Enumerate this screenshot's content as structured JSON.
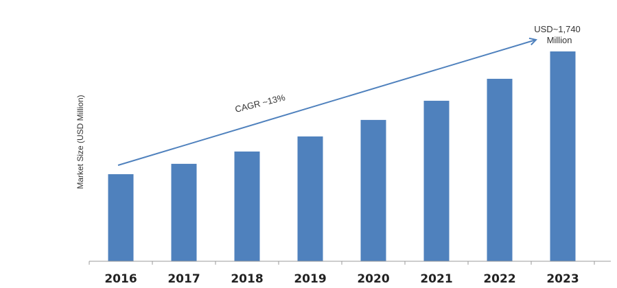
{
  "chart_data": {
    "type": "bar",
    "title": "",
    "xlabel": "",
    "ylabel": "Market Size (USD Million)",
    "categories": [
      "2016",
      "2017",
      "2018",
      "2019",
      "2020",
      "2021",
      "2022",
      "2023"
    ],
    "values": [
      722,
      808,
      910,
      1035,
      1172,
      1331,
      1513,
      1740
    ],
    "ylim": [
      0,
      1740
    ],
    "grid": false,
    "bar_color": "#4f81bd",
    "arrow_color": "#4f81bd",
    "annotations": {
      "cagr": "CAGR ~13%",
      "final_value_line1": "USD~1,740",
      "final_value_line2": "Million"
    }
  }
}
